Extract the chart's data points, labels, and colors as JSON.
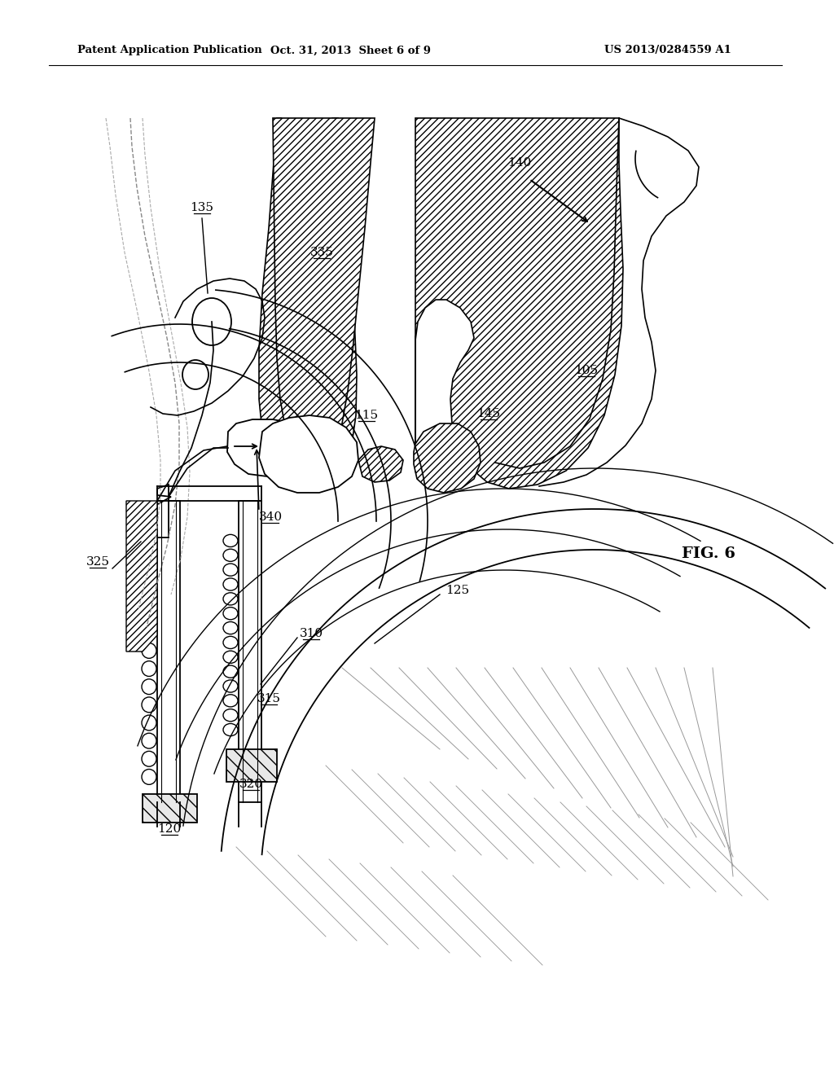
{
  "header_left": "Patent Application Publication",
  "header_center": "Oct. 31, 2013  Sheet 6 of 9",
  "header_right": "US 2013/0284559 A1",
  "fig_label": "FIG. 6",
  "bg_color": "#ffffff"
}
